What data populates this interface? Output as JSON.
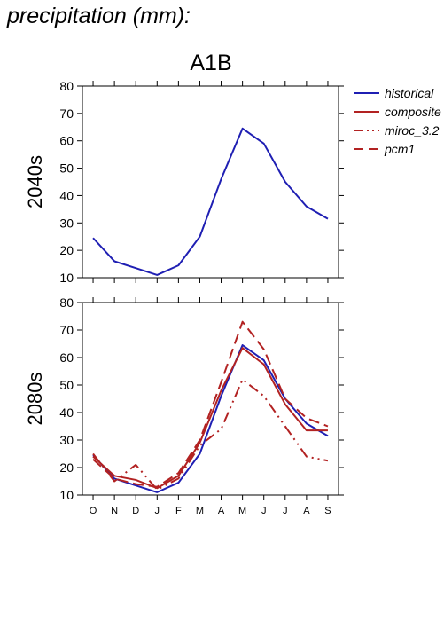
{
  "figure": {
    "title": "precipitation (mm):",
    "scenario": "A1B"
  },
  "legend": {
    "placement": "right",
    "items": [
      {
        "label": "historical",
        "color": "#1f1fb3",
        "dash": "solid"
      },
      {
        "label": "composite",
        "color": "#b22222",
        "dash": "solid"
      },
      {
        "label": "miroc_3.2",
        "color": "#b22222",
        "dash": "dashdotdot"
      },
      {
        "label": "pcm1",
        "color": "#b22222",
        "dash": "dashed"
      }
    ]
  },
  "chart_data": [
    {
      "type": "line",
      "panel_label": "2040s",
      "categories": [
        "O",
        "N",
        "D",
        "J",
        "F",
        "M",
        "A",
        "M",
        "J",
        "J",
        "A",
        "S"
      ],
      "ylim": [
        10,
        80
      ],
      "yticks": [
        10,
        20,
        30,
        40,
        50,
        60,
        70,
        80
      ],
      "grid": false,
      "series": [
        {
          "name": "historical",
          "color": "#1f1fb3",
          "dash": "solid",
          "values": [
            24.5,
            16,
            13.5,
            11,
            14.5,
            25,
            46,
            64.5,
            59,
            45,
            36,
            31.5
          ]
        }
      ]
    },
    {
      "type": "line",
      "panel_label": "2080s",
      "categories": [
        "O",
        "N",
        "D",
        "J",
        "F",
        "M",
        "A",
        "M",
        "J",
        "J",
        "A",
        "S"
      ],
      "ylim": [
        10,
        80
      ],
      "yticks": [
        10,
        20,
        30,
        40,
        50,
        60,
        70,
        80
      ],
      "grid": false,
      "series": [
        {
          "name": "historical",
          "color": "#1f1fb3",
          "dash": "solid",
          "values": [
            24.5,
            16,
            13.5,
            11,
            14.5,
            25,
            46,
            64.5,
            59,
            45,
            36,
            31.5
          ]
        },
        {
          "name": "composite",
          "color": "#b22222",
          "dash": "solid",
          "values": [
            24,
            17,
            15.5,
            12.5,
            17,
            29,
            48,
            63.5,
            57.5,
            43,
            33.5,
            33.5
          ]
        },
        {
          "name": "miroc_3.2",
          "color": "#b22222",
          "dash": "dashdotdot",
          "values": [
            25,
            15,
            21,
            12,
            16,
            28,
            34,
            52,
            46,
            35,
            24,
            22.5
          ]
        },
        {
          "name": "pcm1",
          "color": "#b22222",
          "dash": "dashed",
          "values": [
            23,
            16,
            14,
            13,
            18,
            30,
            51,
            73,
            63,
            45,
            38,
            35
          ]
        }
      ]
    }
  ]
}
